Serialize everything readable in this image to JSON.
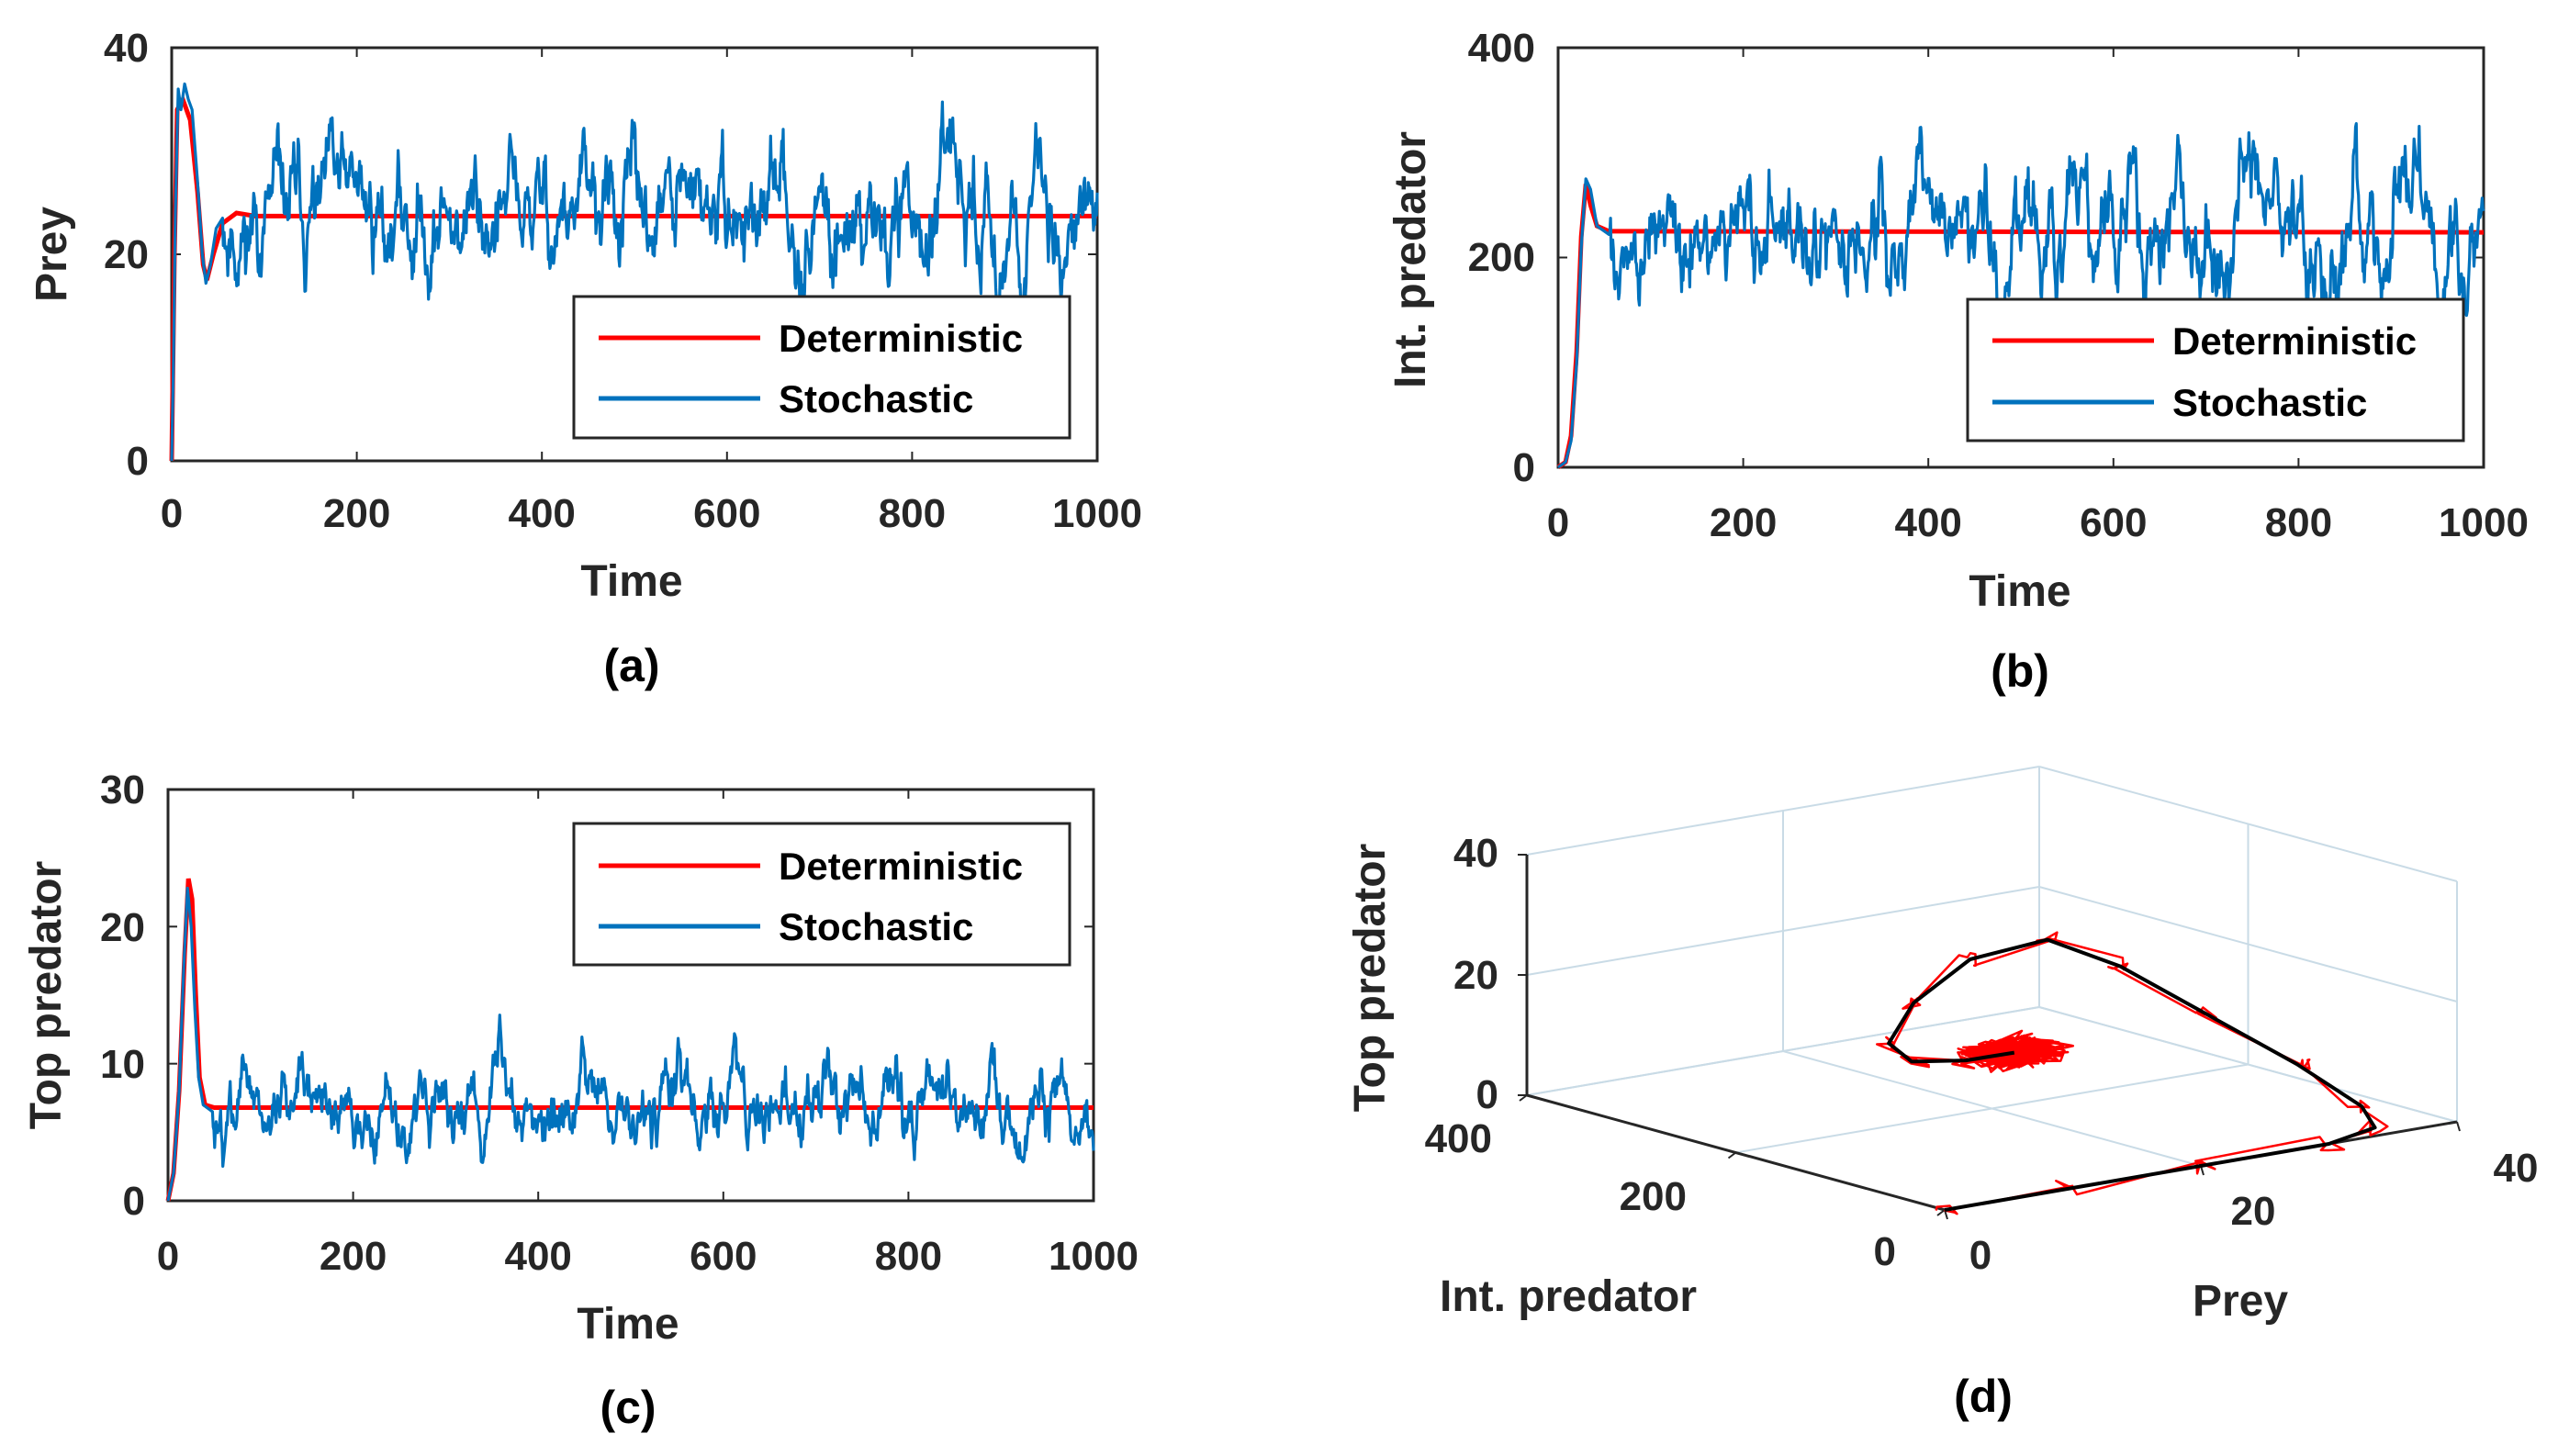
{
  "chart_data": [
    {
      "panel": "a",
      "type": "line",
      "panel_label": "(a)",
      "xlabel": "Time",
      "ylabel": "Prey",
      "xlim": [
        0,
        1000
      ],
      "ylim": [
        0,
        40
      ],
      "xticks": [
        "0",
        "200",
        "400",
        "600",
        "800",
        "1000"
      ],
      "yticks": [
        "0",
        "20",
        "40"
      ],
      "legend": [
        "Deterministic",
        "Stochastic"
      ],
      "deterministic": {
        "transient": [
          [
            0,
            0
          ],
          [
            3,
            20
          ],
          [
            6,
            34
          ],
          [
            12,
            35
          ],
          [
            20,
            33
          ],
          [
            28,
            26
          ],
          [
            34,
            19
          ],
          [
            38,
            17.5
          ],
          [
            45,
            20
          ],
          [
            55,
            23
          ],
          [
            70,
            24
          ],
          [
            90,
            23.7
          ]
        ],
        "equilibrium": 23.7
      },
      "stochastic": {
        "transient": [
          [
            0,
            0
          ],
          [
            2,
            10
          ],
          [
            4,
            24
          ],
          [
            7,
            36
          ],
          [
            10,
            34
          ],
          [
            14,
            36.5
          ],
          [
            18,
            35
          ],
          [
            22,
            34
          ],
          [
            28,
            27
          ],
          [
            33,
            20
          ],
          [
            37,
            17.2
          ],
          [
            42,
            19
          ],
          [
            48,
            22.5
          ],
          [
            55,
            23.5
          ]
        ],
        "mean": 23.7,
        "amplitude": 2.2,
        "seed": 11
      },
      "colors": {
        "deterministic": "#ff0000",
        "stochastic": "#0072bd"
      }
    },
    {
      "panel": "b",
      "type": "line",
      "panel_label": "(b)",
      "xlabel": "Time",
      "ylabel": "Int. predator",
      "xlim": [
        0,
        1000
      ],
      "ylim": [
        0,
        400
      ],
      "xticks": [
        "0",
        "200",
        "400",
        "600",
        "800",
        "1000"
      ],
      "yticks": [
        "0",
        "200",
        "400"
      ],
      "legend": [
        "Deterministic",
        "Stochastic"
      ],
      "deterministic": {
        "transient": [
          [
            0,
            0
          ],
          [
            8,
            5
          ],
          [
            14,
            30
          ],
          [
            20,
            110
          ],
          [
            25,
            220
          ],
          [
            30,
            270
          ],
          [
            35,
            250
          ],
          [
            42,
            230
          ],
          [
            55,
            225
          ]
        ],
        "equilibrium": 224
      },
      "stochastic": {
        "transient": [
          [
            0,
            0
          ],
          [
            8,
            5
          ],
          [
            14,
            25
          ],
          [
            20,
            100
          ],
          [
            25,
            210
          ],
          [
            30,
            275
          ],
          [
            35,
            265
          ],
          [
            42,
            230
          ],
          [
            55,
            222
          ]
        ],
        "mean": 224,
        "amplitude": 22,
        "seed": 27
      },
      "colors": {
        "deterministic": "#ff0000",
        "stochastic": "#0072bd"
      }
    },
    {
      "panel": "c",
      "type": "line",
      "panel_label": "(c)",
      "xlabel": "Time",
      "ylabel": "Top predator",
      "xlim": [
        0,
        1000
      ],
      "ylim": [
        0,
        30
      ],
      "xticks": [
        "0",
        "200",
        "400",
        "600",
        "800",
        "1000"
      ],
      "yticks": [
        "0",
        "10",
        "20",
        "30"
      ],
      "legend": [
        "Deterministic",
        "Stochastic"
      ],
      "deterministic": {
        "transient": [
          [
            0,
            0
          ],
          [
            6,
            2
          ],
          [
            12,
            8
          ],
          [
            18,
            18
          ],
          [
            22,
            23.5
          ],
          [
            26,
            22
          ],
          [
            30,
            15
          ],
          [
            34,
            9
          ],
          [
            40,
            7
          ],
          [
            50,
            6.8
          ]
        ],
        "equilibrium": 6.8
      },
      "stochastic": {
        "transient": [
          [
            0,
            0
          ],
          [
            6,
            2
          ],
          [
            12,
            8
          ],
          [
            17,
            17
          ],
          [
            21,
            22.8
          ],
          [
            25,
            20
          ],
          [
            29,
            14
          ],
          [
            33,
            9
          ],
          [
            38,
            7
          ],
          [
            48,
            6.5
          ]
        ],
        "mean": 6.8,
        "amplitude": 1.1,
        "seed": 43
      },
      "colors": {
        "deterministic": "#ff0000",
        "stochastic": "#0072bd"
      }
    },
    {
      "panel": "d",
      "type": "line3d",
      "panel_label": "(d)",
      "xlabel": "Prey",
      "ylabel": "Int. predator",
      "zlabel": "Top predator",
      "xlim": [
        0,
        40
      ],
      "ylim": [
        0,
        400
      ],
      "zlim": [
        0,
        40
      ],
      "xticks": [
        "0",
        "20",
        "40"
      ],
      "yticks": [
        "0",
        "200",
        "400"
      ],
      "zticks": [
        "0",
        "20",
        "40"
      ],
      "deterministic": [
        [
          0,
          0,
          0
        ],
        [
          10,
          0,
          0
        ],
        [
          20,
          0,
          0
        ],
        [
          30,
          0,
          0
        ],
        [
          34,
          5,
          1
        ],
        [
          35,
          30,
          3
        ],
        [
          34,
          80,
          8
        ],
        [
          32,
          140,
          14
        ],
        [
          30,
          200,
          20
        ],
        [
          28,
          245,
          23
        ],
        [
          24,
          270,
          20
        ],
        [
          20,
          275,
          14
        ],
        [
          17,
          262,
          9
        ],
        [
          17,
          240,
          7
        ],
        [
          20,
          225,
          6.8
        ],
        [
          23.7,
          224,
          6.8
        ]
      ],
      "stochastic_cluster": {
        "center": [
          23.7,
          224,
          6.8
        ],
        "spread": [
          3,
          25,
          1.5
        ],
        "count": 260,
        "seed": 71
      },
      "colors": {
        "deterministic": "#000000",
        "stochastic": "#ff0000",
        "grid": "#c9dbe6",
        "axis": "#262626"
      }
    }
  ]
}
